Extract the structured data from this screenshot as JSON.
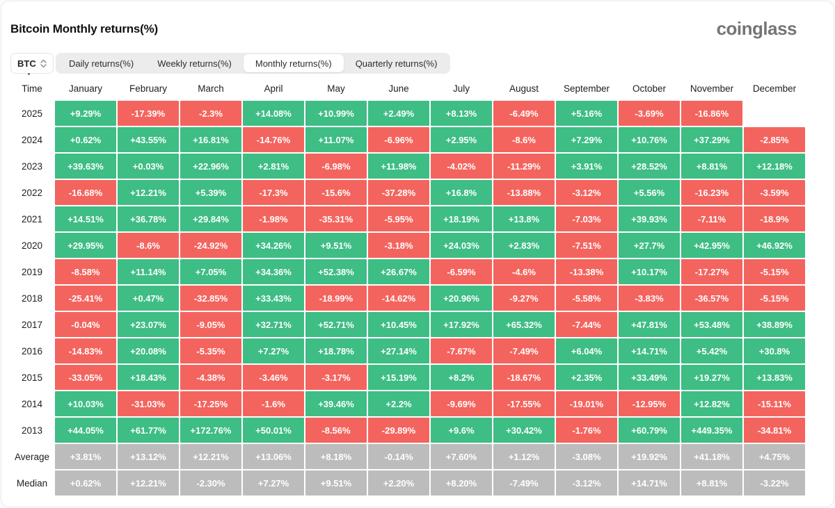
{
  "header": {
    "title": "Bitcoin Monthly returns(%)",
    "logo": "coinglass"
  },
  "controls": {
    "coin_selector": {
      "value": "BTC"
    },
    "tabs": [
      {
        "label": "Daily returns(%)",
        "active": false
      },
      {
        "label": "Weekly returns(%)",
        "active": false
      },
      {
        "label": "Monthly returns(%)",
        "active": true
      },
      {
        "label": "Quarterly returns(%)",
        "active": false
      }
    ]
  },
  "chart_data": {
    "type": "heatmap",
    "title": "Bitcoin Monthly returns(%)",
    "row_header": "Time",
    "columns": [
      "January",
      "February",
      "March",
      "April",
      "May",
      "June",
      "July",
      "August",
      "September",
      "October",
      "November",
      "December"
    ],
    "rows": [
      {
        "label": "2025",
        "summary": false,
        "values": [
          "+9.29%",
          "-17.39%",
          "-2.3%",
          "+14.08%",
          "+10.99%",
          "+2.49%",
          "+8.13%",
          "-6.49%",
          "+5.16%",
          "-3.69%",
          "-16.86%",
          null
        ]
      },
      {
        "label": "2024",
        "summary": false,
        "values": [
          "+0.62%",
          "+43.55%",
          "+16.81%",
          "-14.76%",
          "+11.07%",
          "-6.96%",
          "+2.95%",
          "-8.6%",
          "+7.29%",
          "+10.76%",
          "+37.29%",
          "-2.85%"
        ]
      },
      {
        "label": "2023",
        "summary": false,
        "values": [
          "+39.63%",
          "+0.03%",
          "+22.96%",
          "+2.81%",
          "-6.98%",
          "+11.98%",
          "-4.02%",
          "-11.29%",
          "+3.91%",
          "+28.52%",
          "+8.81%",
          "+12.18%"
        ]
      },
      {
        "label": "2022",
        "summary": false,
        "values": [
          "-16.68%",
          "+12.21%",
          "+5.39%",
          "-17.3%",
          "-15.6%",
          "-37.28%",
          "+16.8%",
          "-13.88%",
          "-3.12%",
          "+5.56%",
          "-16.23%",
          "-3.59%"
        ]
      },
      {
        "label": "2021",
        "summary": false,
        "values": [
          "+14.51%",
          "+36.78%",
          "+29.84%",
          "-1.98%",
          "-35.31%",
          "-5.95%",
          "+18.19%",
          "+13.8%",
          "-7.03%",
          "+39.93%",
          "-7.11%",
          "-18.9%"
        ]
      },
      {
        "label": "2020",
        "summary": false,
        "values": [
          "+29.95%",
          "-8.6%",
          "-24.92%",
          "+34.26%",
          "+9.51%",
          "-3.18%",
          "+24.03%",
          "+2.83%",
          "-7.51%",
          "+27.7%",
          "+42.95%",
          "+46.92%"
        ]
      },
      {
        "label": "2019",
        "summary": false,
        "values": [
          "-8.58%",
          "+11.14%",
          "+7.05%",
          "+34.36%",
          "+52.38%",
          "+26.67%",
          "-6.59%",
          "-4.6%",
          "-13.38%",
          "+10.17%",
          "-17.27%",
          "-5.15%"
        ]
      },
      {
        "label": "2018",
        "summary": false,
        "values": [
          "-25.41%",
          "+0.47%",
          "-32.85%",
          "+33.43%",
          "-18.99%",
          "-14.62%",
          "+20.96%",
          "-9.27%",
          "-5.58%",
          "-3.83%",
          "-36.57%",
          "-5.15%"
        ]
      },
      {
        "label": "2017",
        "summary": false,
        "values": [
          "-0.04%",
          "+23.07%",
          "-9.05%",
          "+32.71%",
          "+52.71%",
          "+10.45%",
          "+17.92%",
          "+65.32%",
          "-7.44%",
          "+47.81%",
          "+53.48%",
          "+38.89%"
        ]
      },
      {
        "label": "2016",
        "summary": false,
        "values": [
          "-14.83%",
          "+20.08%",
          "-5.35%",
          "+7.27%",
          "+18.78%",
          "+27.14%",
          "-7.67%",
          "-7.49%",
          "+6.04%",
          "+14.71%",
          "+5.42%",
          "+30.8%"
        ]
      },
      {
        "label": "2015",
        "summary": false,
        "values": [
          "-33.05%",
          "+18.43%",
          "-4.38%",
          "-3.46%",
          "-3.17%",
          "+15.19%",
          "+8.2%",
          "-18.67%",
          "+2.35%",
          "+33.49%",
          "+19.27%",
          "+13.83%"
        ]
      },
      {
        "label": "2014",
        "summary": false,
        "values": [
          "+10.03%",
          "-31.03%",
          "-17.25%",
          "-1.6%",
          "+39.46%",
          "+2.2%",
          "-9.69%",
          "-17.55%",
          "-19.01%",
          "-12.95%",
          "+12.82%",
          "-15.11%"
        ]
      },
      {
        "label": "2013",
        "summary": false,
        "values": [
          "+44.05%",
          "+61.77%",
          "+172.76%",
          "+50.01%",
          "-8.56%",
          "-29.89%",
          "+9.6%",
          "+30.42%",
          "-1.76%",
          "+60.79%",
          "+449.35%",
          "-34.81%"
        ]
      },
      {
        "label": "Average",
        "summary": true,
        "values": [
          "+3.81%",
          "+13.12%",
          "+12.21%",
          "+13.06%",
          "+8.18%",
          "-0.14%",
          "+7.60%",
          "+1.12%",
          "-3.08%",
          "+19.92%",
          "+41.18%",
          "+4.75%"
        ]
      },
      {
        "label": "Median",
        "summary": true,
        "values": [
          "+0.62%",
          "+12.21%",
          "-2.30%",
          "+7.27%",
          "+9.51%",
          "+2.20%",
          "+8.20%",
          "-7.49%",
          "-3.12%",
          "+14.71%",
          "+8.81%",
          "-3.22%"
        ]
      }
    ],
    "colors": {
      "positive": "#3ebd85",
      "negative": "#f4645e",
      "summary": "#bcbcbc"
    }
  }
}
